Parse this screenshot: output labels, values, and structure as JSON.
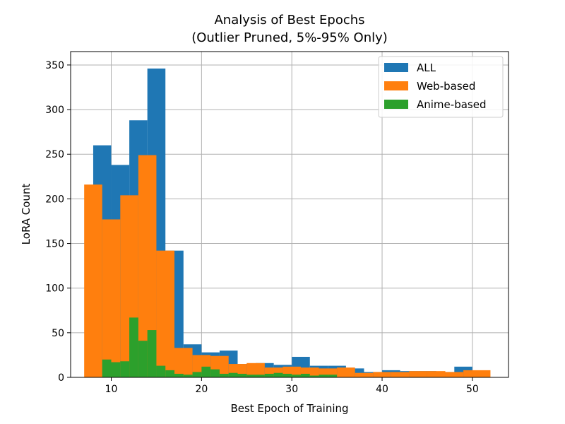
{
  "chart_data": {
    "type": "bar",
    "title": "Analysis of Best Epochs",
    "subtitle": "(Outlier Pruned, 5%-95% Only)",
    "xlabel": "Best Epoch of Training",
    "ylabel": "LoRA Count",
    "xlim": [
      5.5,
      54
    ],
    "ylim": [
      0,
      365
    ],
    "xticks": [
      10,
      20,
      30,
      40,
      50
    ],
    "yticks": [
      0,
      50,
      100,
      150,
      200,
      250,
      300,
      350
    ],
    "grid": true,
    "legend_position": "top-right",
    "series": [
      {
        "name": "ALL",
        "color": "#1f77b4",
        "bin_edges": [
          8,
          10,
          12,
          14,
          16,
          18,
          20,
          22,
          24,
          26,
          28,
          30,
          32,
          34,
          36,
          38,
          40,
          42,
          44,
          46,
          48,
          50
        ],
        "values": [
          260,
          238,
          288,
          346,
          142,
          37,
          28,
          30,
          15,
          16,
          14,
          23,
          13,
          13,
          10,
          6,
          8,
          7,
          7,
          6,
          12
        ]
      },
      {
        "name": "Web-based",
        "color": "#ff7f0e",
        "bin_edges": [
          7,
          9,
          11,
          13,
          15,
          17,
          19,
          21,
          23,
          25,
          27,
          29,
          31,
          33,
          35,
          37,
          39,
          41,
          43,
          45,
          47,
          49,
          52
        ],
        "values": [
          216,
          177,
          204,
          249,
          142,
          33,
          25,
          24,
          15,
          16,
          11,
          12,
          11,
          10,
          11,
          5,
          6,
          6,
          7,
          7,
          6,
          8
        ]
      },
      {
        "name": "Anime-based",
        "color": "#2ca02c",
        "bin_edges": [
          9,
          10,
          11,
          12,
          13,
          14,
          15,
          16,
          17,
          18,
          19,
          20,
          21,
          22,
          23,
          24,
          25,
          26,
          27,
          28,
          29,
          30,
          31,
          32,
          33,
          34,
          35
        ],
        "values": [
          20,
          17,
          18,
          67,
          41,
          53,
          13,
          8,
          4,
          3,
          6,
          12,
          9,
          4,
          5,
          4,
          3,
          3,
          4,
          5,
          4,
          3,
          4,
          2,
          3,
          3
        ]
      }
    ]
  }
}
